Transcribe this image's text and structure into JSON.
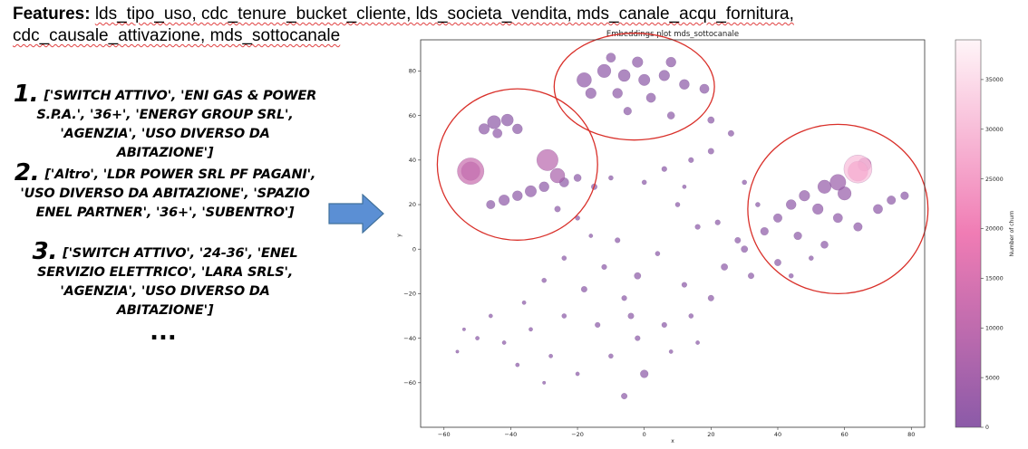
{
  "features": {
    "label": "Features",
    "separator": ":",
    "list": "lds_tipo_uso, cdc_tenure_bucket_cliente, lds_societa_vendita, mds_canale_acqu_fornitura, cdc_causale_attivazione, mds_sottocanale"
  },
  "combinations": [
    {
      "number": "1.",
      "text": "['SWITCH ATTIVO', 'ENI GAS & POWER S.P.A.', '36+', 'ENERGY GROUP SRL', 'AGENZIA', 'USO DIVERSO DA ABITAZIONE']"
    },
    {
      "number": "2.",
      "text": "['Altro', 'LDR POWER SRL PF PAGANI', 'USO DIVERSO DA ABITAZIONE', 'SPAZIO ENEL PARTNER', '36+', 'SUBENTRO']"
    },
    {
      "number": "3.",
      "text": "['SWITCH ATTIVO', '24-36', 'ENEL SERVIZIO ELETTRICO', 'LARA SRLS', 'AGENZIA', 'USO DIVERSO DA ABITAZIONE']"
    }
  ],
  "ellipsis": "...",
  "arrow": {
    "icon": "right-arrow-icon",
    "color": "#5b8fd4"
  },
  "chart_data": {
    "type": "scatter",
    "title": "Embeddings plot mds_sottocanale",
    "xlabel": "x",
    "ylabel": "y",
    "xlim": [
      -67,
      84
    ],
    "ylim": [
      -80,
      94
    ],
    "xticks": [
      -60,
      -40,
      -20,
      0,
      20,
      40,
      60,
      80
    ],
    "yticks": [
      -60,
      -40,
      -20,
      0,
      20,
      40,
      60,
      80
    ],
    "grid": false,
    "colorbar": {
      "label": "Number of churn",
      "min": 0,
      "max": 39000,
      "ticks": [
        0,
        5000,
        10000,
        15000,
        20000,
        25000,
        30000,
        35000
      ],
      "color_low": "#8b5aa8",
      "color_mid": "#f07cb4",
      "color_high": "#fff5f8"
    },
    "highlight_ellipses": [
      {
        "cx": -38,
        "cy": 38,
        "rx": 24,
        "ry": 34
      },
      {
        "cx": -3,
        "cy": 73,
        "rx": 24,
        "ry": 24
      },
      {
        "cx": 58,
        "cy": 18,
        "rx": 27,
        "ry": 38
      }
    ],
    "highlight_color": "#d9302a",
    "points": [
      {
        "x": -52,
        "y": 35,
        "r": 4.0,
        "c": 12000
      },
      {
        "x": -52,
        "y": 35,
        "r": 2.8,
        "c": 8000
      },
      {
        "x": -29,
        "y": 40,
        "r": 3.2,
        "c": 9000
      },
      {
        "x": -26,
        "y": 33,
        "r": 2.2,
        "c": 6000
      },
      {
        "x": -45,
        "y": 57,
        "r": 2.0,
        "c": 800
      },
      {
        "x": -41,
        "y": 58,
        "r": 1.8,
        "c": 600
      },
      {
        "x": -48,
        "y": 54,
        "r": 1.6,
        "c": 700
      },
      {
        "x": -38,
        "y": 54,
        "r": 1.5,
        "c": 500
      },
      {
        "x": -44,
        "y": 52,
        "r": 1.4,
        "c": 900
      },
      {
        "x": -42,
        "y": 22,
        "r": 1.6,
        "c": 900
      },
      {
        "x": -38,
        "y": 24,
        "r": 1.5,
        "c": 700
      },
      {
        "x": -34,
        "y": 26,
        "r": 1.7,
        "c": 1100
      },
      {
        "x": -30,
        "y": 28,
        "r": 1.5,
        "c": 800
      },
      {
        "x": -46,
        "y": 20,
        "r": 1.3,
        "c": 600
      },
      {
        "x": -24,
        "y": 30,
        "r": 1.4,
        "c": 700
      },
      {
        "x": -20,
        "y": 32,
        "r": 1.1,
        "c": 500
      },
      {
        "x": -15,
        "y": 28,
        "r": 0.9,
        "c": 300
      },
      {
        "x": -10,
        "y": 32,
        "r": 0.7,
        "c": 200
      },
      {
        "x": -18,
        "y": 76,
        "r": 2.2,
        "c": 1200
      },
      {
        "x": -12,
        "y": 80,
        "r": 2.0,
        "c": 900
      },
      {
        "x": -6,
        "y": 78,
        "r": 1.8,
        "c": 700
      },
      {
        "x": 0,
        "y": 76,
        "r": 1.7,
        "c": 600
      },
      {
        "x": 6,
        "y": 78,
        "r": 1.6,
        "c": 600
      },
      {
        "x": 12,
        "y": 74,
        "r": 1.5,
        "c": 500
      },
      {
        "x": -16,
        "y": 70,
        "r": 1.6,
        "c": 800
      },
      {
        "x": -8,
        "y": 70,
        "r": 1.5,
        "c": 700
      },
      {
        "x": 2,
        "y": 68,
        "r": 1.4,
        "c": 600
      },
      {
        "x": -2,
        "y": 84,
        "r": 1.6,
        "c": 800
      },
      {
        "x": -10,
        "y": 86,
        "r": 1.4,
        "c": 700
      },
      {
        "x": 8,
        "y": 84,
        "r": 1.5,
        "c": 700
      },
      {
        "x": 18,
        "y": 72,
        "r": 1.4,
        "c": 500
      },
      {
        "x": -5,
        "y": 62,
        "r": 1.2,
        "c": 400
      },
      {
        "x": 8,
        "y": 60,
        "r": 1.1,
        "c": 300
      },
      {
        "x": 20,
        "y": 58,
        "r": 1.0,
        "c": 300
      },
      {
        "x": 64,
        "y": 36,
        "r": 4.2,
        "c": 30000
      },
      {
        "x": 64,
        "y": 35,
        "r": 3.0,
        "c": 20000
      },
      {
        "x": 66,
        "y": 38,
        "r": 2.0,
        "c": 12000
      },
      {
        "x": 58,
        "y": 30,
        "r": 2.4,
        "c": 3000
      },
      {
        "x": 54,
        "y": 28,
        "r": 2.0,
        "c": 2000
      },
      {
        "x": 60,
        "y": 25,
        "r": 2.0,
        "c": 2500
      },
      {
        "x": 48,
        "y": 24,
        "r": 1.6,
        "c": 1500
      },
      {
        "x": 52,
        "y": 18,
        "r": 1.6,
        "c": 1200
      },
      {
        "x": 44,
        "y": 20,
        "r": 1.5,
        "c": 1000
      },
      {
        "x": 58,
        "y": 14,
        "r": 1.4,
        "c": 900
      },
      {
        "x": 64,
        "y": 10,
        "r": 1.3,
        "c": 900
      },
      {
        "x": 70,
        "y": 18,
        "r": 1.4,
        "c": 900
      },
      {
        "x": 74,
        "y": 22,
        "r": 1.3,
        "c": 800
      },
      {
        "x": 40,
        "y": 14,
        "r": 1.3,
        "c": 800
      },
      {
        "x": 36,
        "y": 8,
        "r": 1.2,
        "c": 700
      },
      {
        "x": 46,
        "y": 6,
        "r": 1.2,
        "c": 600
      },
      {
        "x": 54,
        "y": 2,
        "r": 1.1,
        "c": 500
      },
      {
        "x": 30,
        "y": 0,
        "r": 1.0,
        "c": 500
      },
      {
        "x": 24,
        "y": -8,
        "r": 1.0,
        "c": 400
      },
      {
        "x": 32,
        "y": -12,
        "r": 0.9,
        "c": 300
      },
      {
        "x": 40,
        "y": -6,
        "r": 1.0,
        "c": 400
      },
      {
        "x": 78,
        "y": 24,
        "r": 1.2,
        "c": 600
      },
      {
        "x": 20,
        "y": 44,
        "r": 0.9,
        "c": 300
      },
      {
        "x": 26,
        "y": 52,
        "r": 0.9,
        "c": 300
      },
      {
        "x": 14,
        "y": 40,
        "r": 0.8,
        "c": 200
      },
      {
        "x": 6,
        "y": 36,
        "r": 0.8,
        "c": 200
      },
      {
        "x": 0,
        "y": 30,
        "r": 0.7,
        "c": 200
      },
      {
        "x": 10,
        "y": 20,
        "r": 0.7,
        "c": 200
      },
      {
        "x": 16,
        "y": 10,
        "r": 0.8,
        "c": 200
      },
      {
        "x": 22,
        "y": 12,
        "r": 0.8,
        "c": 300
      },
      {
        "x": -8,
        "y": 4,
        "r": 0.8,
        "c": 200
      },
      {
        "x": -2,
        "y": -12,
        "r": 1.0,
        "c": 300
      },
      {
        "x": -12,
        "y": -8,
        "r": 0.8,
        "c": 200
      },
      {
        "x": 4,
        "y": -2,
        "r": 0.7,
        "c": 200
      },
      {
        "x": 12,
        "y": -16,
        "r": 0.8,
        "c": 200
      },
      {
        "x": 20,
        "y": -22,
        "r": 0.9,
        "c": 300
      },
      {
        "x": -6,
        "y": -22,
        "r": 0.8,
        "c": 200
      },
      {
        "x": -18,
        "y": -18,
        "r": 0.9,
        "c": 200
      },
      {
        "x": -24,
        "y": -30,
        "r": 0.7,
        "c": 200
      },
      {
        "x": -14,
        "y": -34,
        "r": 0.8,
        "c": 200
      },
      {
        "x": -4,
        "y": -30,
        "r": 0.9,
        "c": 300
      },
      {
        "x": 6,
        "y": -34,
        "r": 0.8,
        "c": 200
      },
      {
        "x": 14,
        "y": -30,
        "r": 0.7,
        "c": 200
      },
      {
        "x": -2,
        "y": -40,
        "r": 0.8,
        "c": 200
      },
      {
        "x": -10,
        "y": -48,
        "r": 0.7,
        "c": 200
      },
      {
        "x": 0,
        "y": -56,
        "r": 1.2,
        "c": 400
      },
      {
        "x": -6,
        "y": -66,
        "r": 0.9,
        "c": 300
      },
      {
        "x": -34,
        "y": -36,
        "r": 0.6,
        "c": 100
      },
      {
        "x": -42,
        "y": -42,
        "r": 0.6,
        "c": 100
      },
      {
        "x": -50,
        "y": -40,
        "r": 0.6,
        "c": 100
      },
      {
        "x": -56,
        "y": -46,
        "r": 0.5,
        "c": 100
      },
      {
        "x": -38,
        "y": -52,
        "r": 0.6,
        "c": 100
      },
      {
        "x": -28,
        "y": -48,
        "r": 0.6,
        "c": 100
      },
      {
        "x": -20,
        "y": -56,
        "r": 0.6,
        "c": 100
      },
      {
        "x": -30,
        "y": -60,
        "r": 0.5,
        "c": 100
      },
      {
        "x": -46,
        "y": -30,
        "r": 0.6,
        "c": 100
      },
      {
        "x": -36,
        "y": -24,
        "r": 0.6,
        "c": 100
      },
      {
        "x": -30,
        "y": -14,
        "r": 0.7,
        "c": 200
      },
      {
        "x": -24,
        "y": -4,
        "r": 0.7,
        "c": 200
      },
      {
        "x": -16,
        "y": 6,
        "r": 0.6,
        "c": 100
      },
      {
        "x": -20,
        "y": 14,
        "r": 0.7,
        "c": 200
      },
      {
        "x": -26,
        "y": 18,
        "r": 0.9,
        "c": 300
      },
      {
        "x": 12,
        "y": 28,
        "r": 0.6,
        "c": 100
      },
      {
        "x": 30,
        "y": 30,
        "r": 0.7,
        "c": 200
      },
      {
        "x": 34,
        "y": 20,
        "r": 0.7,
        "c": 200
      },
      {
        "x": 28,
        "y": 4,
        "r": 0.9,
        "c": 300
      },
      {
        "x": 44,
        "y": -12,
        "r": 0.7,
        "c": 200
      },
      {
        "x": 50,
        "y": -4,
        "r": 0.7,
        "c": 200
      },
      {
        "x": 8,
        "y": -46,
        "r": 0.6,
        "c": 100
      },
      {
        "x": 16,
        "y": -42,
        "r": 0.6,
        "c": 100
      },
      {
        "x": -54,
        "y": -36,
        "r": 0.5,
        "c": 100
      }
    ]
  }
}
